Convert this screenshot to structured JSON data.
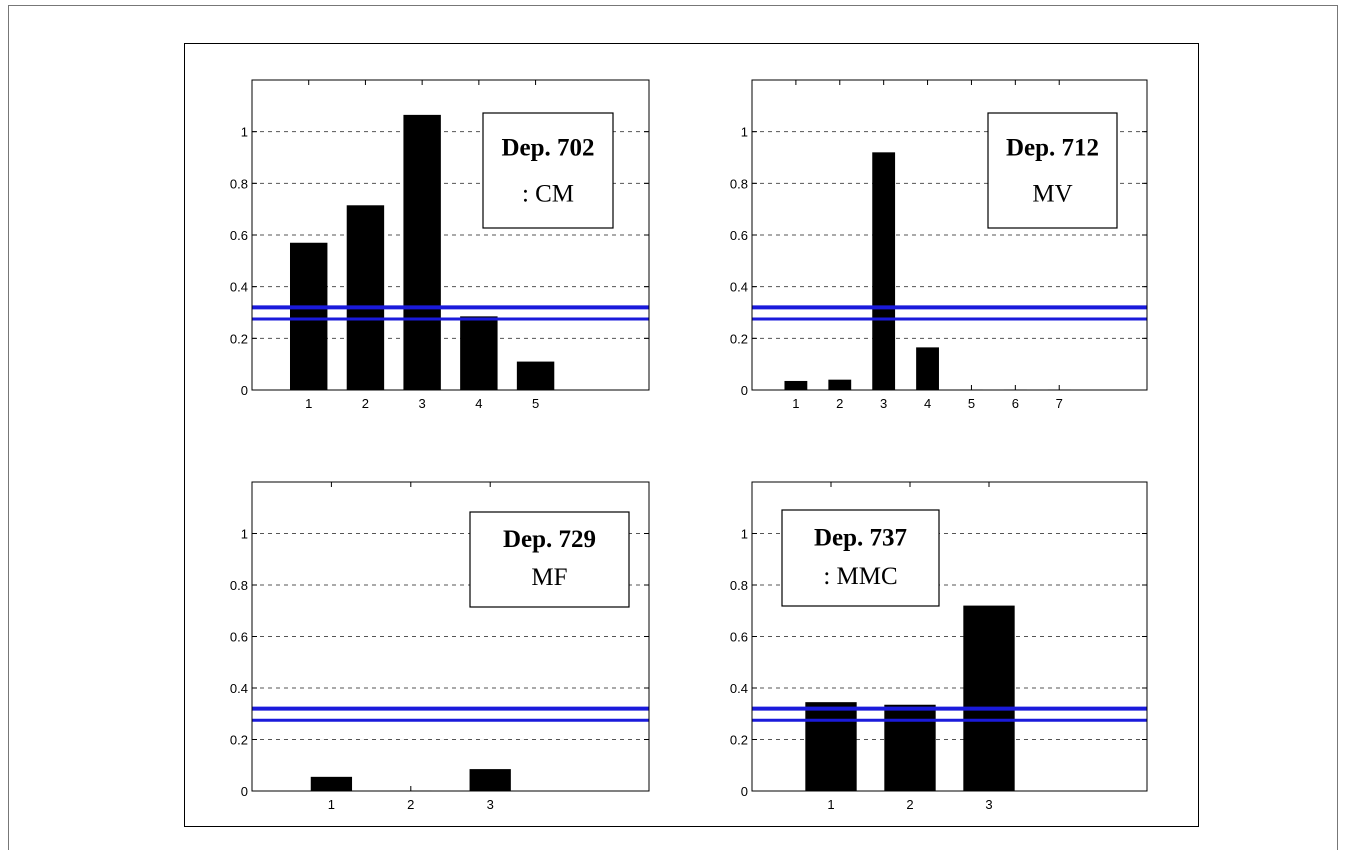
{
  "chart_data": [
    {
      "type": "bar",
      "categories": [
        "1",
        "2",
        "3",
        "4",
        "5"
      ],
      "values": [
        0.57,
        0.715,
        1.065,
        0.285,
        0.11
      ],
      "annotation": {
        "title": "Dep. 702",
        "subtitle": ": CM"
      },
      "reference_lines": [
        0.275,
        0.32
      ],
      "yticks": [
        "0",
        "0.2",
        "0.4",
        "0.6",
        "0.8",
        "1"
      ],
      "ylim": [
        0,
        1.2
      ],
      "grid": "dashed"
    },
    {
      "type": "bar",
      "categories": [
        "1",
        "2",
        "3",
        "4",
        "5",
        "6",
        "7"
      ],
      "values": [
        0.035,
        0.04,
        0.92,
        0.165,
        0.002,
        0.002,
        0.002
      ],
      "annotation": {
        "title": "Dep. 712",
        "subtitle": "MV"
      },
      "reference_lines": [
        0.275,
        0.32
      ],
      "yticks": [
        "0",
        "0.2",
        "0.4",
        "0.6",
        "0.8",
        "1"
      ],
      "ylim": [
        0,
        1.2
      ],
      "grid": "dashed"
    },
    {
      "type": "bar",
      "categories": [
        "1",
        "2",
        "3"
      ],
      "values": [
        0.055,
        0.002,
        0.085
      ],
      "annotation": {
        "title": "Dep. 729",
        "subtitle": "MF"
      },
      "reference_lines": [
        0.275,
        0.32
      ],
      "yticks": [
        "0",
        "0.2",
        "0.4",
        "0.6",
        "0.8",
        "1"
      ],
      "ylim": [
        0,
        1.2
      ],
      "grid": "dashed"
    },
    {
      "type": "bar",
      "categories": [
        "1",
        "2",
        "3"
      ],
      "values": [
        0.345,
        0.335,
        0.72
      ],
      "annotation": {
        "title": "Dep. 737",
        "subtitle": ": MMC"
      },
      "reference_lines": [
        0.275,
        0.32
      ],
      "yticks": [
        "0",
        "0.2",
        "0.4",
        "0.6",
        "0.8",
        "1"
      ],
      "ylim": [
        0,
        1.2
      ],
      "grid": "dashed"
    }
  ],
  "colors": {
    "bars": "#000000",
    "reference_lines": "#1a1adb",
    "grid": "#555555"
  }
}
